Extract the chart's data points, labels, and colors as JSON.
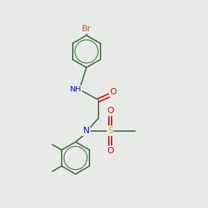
{
  "background_color": "#e8eae8",
  "bond_color": "#3d6b3d",
  "bond_width": 1.3,
  "atom_colors": {
    "Br": "#c06000",
    "N": "#0000dd",
    "O": "#dd0000",
    "S": "#bbbb00",
    "C": "#3d6b3d",
    "H": "#555555"
  },
  "font_size": 7.5,
  "figsize": [
    3.0,
    3.0
  ],
  "dpi": 100
}
